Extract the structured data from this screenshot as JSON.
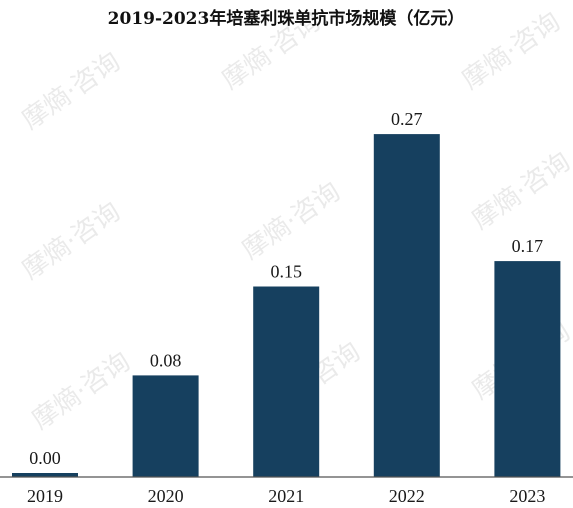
{
  "watermark_text": "摩熵·咨询",
  "colors": {
    "bar": "#16405f",
    "axis": "#555555",
    "text": "#1a1a1a"
  },
  "chart_data": {
    "type": "bar",
    "title": "2019-2023年培塞利珠单抗市场规模（亿元）",
    "categories": [
      "2019",
      "2020",
      "2021",
      "2022",
      "2023"
    ],
    "values": [
      0.0,
      0.08,
      0.15,
      0.27,
      0.17
    ],
    "value_labels": [
      "0.00",
      "0.08",
      "0.15",
      "0.27",
      "0.17"
    ],
    "xlabel": "",
    "ylabel": "",
    "ylim": [
      0,
      0.3
    ],
    "grid": false,
    "legend": "none"
  }
}
